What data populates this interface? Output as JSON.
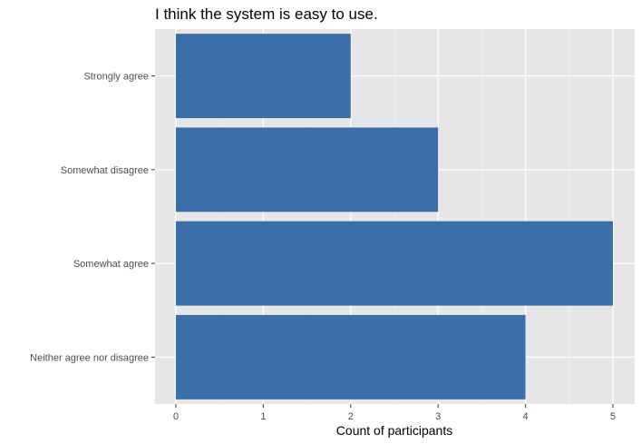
{
  "chart_data": {
    "type": "bar",
    "orientation": "horizontal",
    "title": "I think the system is easy to use.",
    "xlabel": "Count of participants",
    "ylabel": "",
    "categories": [
      "Strongly agree",
      "Somewhat disagree",
      "Somewhat agree",
      "Neither agree nor disagree"
    ],
    "values": [
      2,
      3,
      5,
      4
    ],
    "xlim": [
      0,
      5
    ],
    "x_ticks": [
      0,
      1,
      2,
      3,
      4,
      5
    ],
    "grid": true,
    "legend": "none",
    "colors": {
      "bar": "#3a6ea8",
      "panel": "#e6e6e6",
      "grid_major": "#ffffff",
      "grid_minor": "#f2f2f2"
    }
  }
}
